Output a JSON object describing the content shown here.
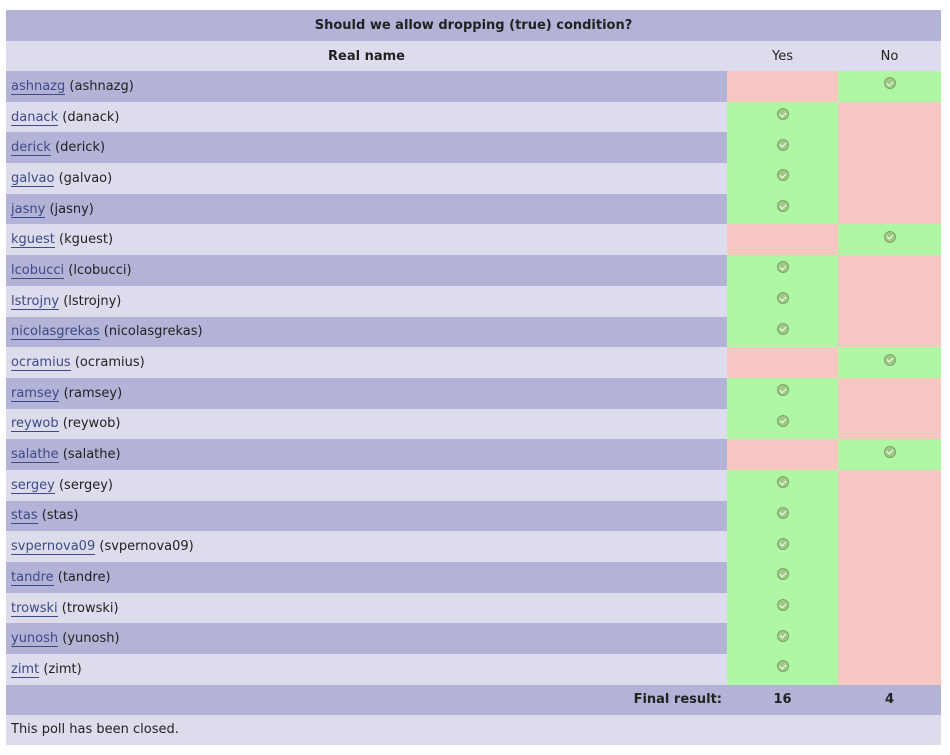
{
  "poll": {
    "title": "Should we allow dropping (true) condition?",
    "header": {
      "name": "Real name",
      "yes": "Yes",
      "no": "No"
    },
    "rows": [
      {
        "username": "ashnazg",
        "realname": "(ashnazg)",
        "vote": "No"
      },
      {
        "username": "danack",
        "realname": "(danack)",
        "vote": "Yes"
      },
      {
        "username": "derick",
        "realname": "(derick)",
        "vote": "Yes"
      },
      {
        "username": "galvao",
        "realname": "(galvao)",
        "vote": "Yes"
      },
      {
        "username": "jasny",
        "realname": "(jasny)",
        "vote": "Yes"
      },
      {
        "username": "kguest",
        "realname": "(kguest)",
        "vote": "No"
      },
      {
        "username": "lcobucci",
        "realname": "(lcobucci)",
        "vote": "Yes"
      },
      {
        "username": "lstrojny",
        "realname": "(lstrojny)",
        "vote": "Yes"
      },
      {
        "username": "nicolasgrekas",
        "realname": "(nicolasgrekas)",
        "vote": "Yes"
      },
      {
        "username": "ocramius",
        "realname": "(ocramius)",
        "vote": "No"
      },
      {
        "username": "ramsey",
        "realname": "(ramsey)",
        "vote": "Yes"
      },
      {
        "username": "reywob",
        "realname": "(reywob)",
        "vote": "Yes"
      },
      {
        "username": "salathe",
        "realname": "(salathe)",
        "vote": "No"
      },
      {
        "username": "sergey",
        "realname": "(sergey)",
        "vote": "Yes"
      },
      {
        "username": "stas",
        "realname": "(stas)",
        "vote": "Yes"
      },
      {
        "username": "svpernova09",
        "realname": "(svpernova09)",
        "vote": "Yes"
      },
      {
        "username": "tandre",
        "realname": "(tandre)",
        "vote": "Yes"
      },
      {
        "username": "trowski",
        "realname": "(trowski)",
        "vote": "Yes"
      },
      {
        "username": "yunosh",
        "realname": "(yunosh)",
        "vote": "Yes"
      },
      {
        "username": "zimt",
        "realname": "(zimt)",
        "vote": "Yes"
      }
    ],
    "final_result_label": "Final result:",
    "final_yes": "16",
    "final_no": "4",
    "closed_text": "This poll has been closed."
  },
  "icons": {
    "vote_mark": "check-circle-icon"
  },
  "colors": {
    "title_bg": "#b3b3d8",
    "row_light_bg": "#dcdcec",
    "voted_bg": "#b0f7a5",
    "not_voted_bg": "#f7c7c4",
    "link": "#3c4a85"
  }
}
